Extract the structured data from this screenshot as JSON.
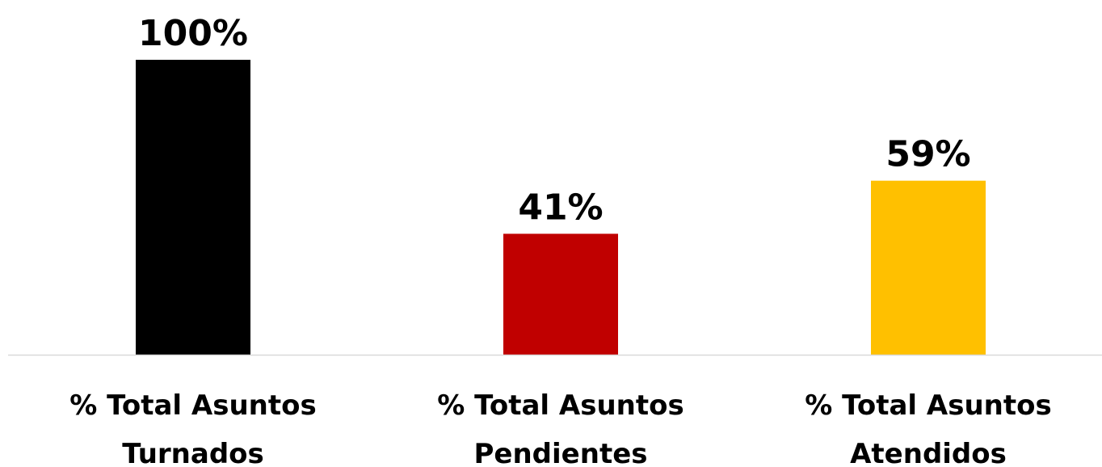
{
  "chart_data": {
    "type": "bar",
    "categories": [
      [
        "% Total Asuntos",
        "Turnados"
      ],
      [
        "% Total Asuntos",
        "Pendientes"
      ],
      [
        "% Total Asuntos",
        "Atendidos"
      ]
    ],
    "values": [
      100,
      41,
      59
    ],
    "value_labels": [
      "100%",
      "41%",
      "59%"
    ],
    "colors": [
      "#000000",
      "#c00000",
      "#ffc000"
    ],
    "ylim": [
      0,
      100
    ],
    "grid": false,
    "axis_line_color": "#d9d9d9"
  }
}
